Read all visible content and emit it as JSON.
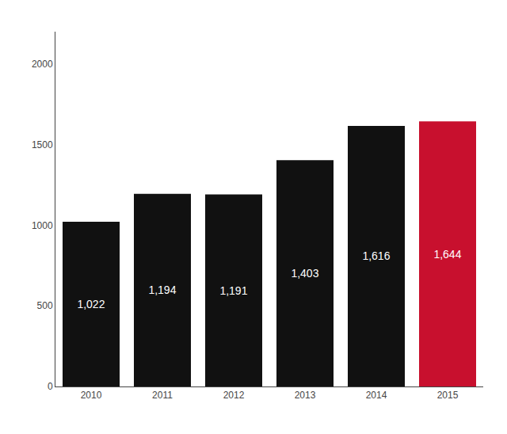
{
  "chart_data": {
    "type": "bar",
    "categories": [
      "2010",
      "2011",
      "2012",
      "2013",
      "2014",
      "2015"
    ],
    "values": [
      1022,
      1194,
      1191,
      1403,
      1616,
      1644
    ],
    "value_labels": [
      "1,022",
      "1,194",
      "1,191",
      "1,403",
      "1,616",
      "1,644"
    ],
    "colors": [
      "#111111",
      "#111111",
      "#111111",
      "#111111",
      "#111111",
      "#c8102e"
    ],
    "ylim": [
      0,
      2200
    ],
    "yticks": [
      0,
      500,
      1000,
      1500,
      2000
    ],
    "grid": false,
    "data_labels": true
  }
}
